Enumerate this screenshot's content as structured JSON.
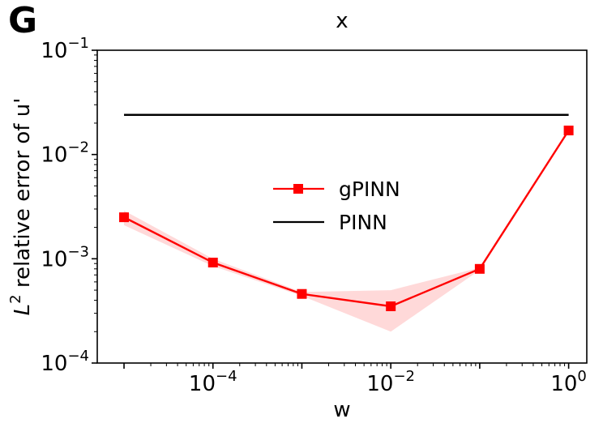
{
  "panel_label": "G",
  "chart_data": {
    "type": "line",
    "title": "x",
    "xlabel": "w",
    "ylabel_base": "L",
    "ylabel_sup": "2",
    "ylabel_rest": " relative error of u'",
    "xscale": "log",
    "yscale": "log",
    "xlim": [
      5e-06,
      1.6
    ],
    "ylim": [
      0.0001,
      0.1
    ],
    "grid": false,
    "legend_position": "center",
    "x_ticks": [
      {
        "value": 0.0001,
        "base": "10",
        "exp": "−4"
      },
      {
        "value": 0.01,
        "base": "10",
        "exp": "−2"
      },
      {
        "value": 1,
        "base": "10",
        "exp": "0"
      }
    ],
    "y_ticks": [
      {
        "value": 0.0001,
        "base": "10",
        "exp": "−4"
      },
      {
        "value": 0.001,
        "base": "10",
        "exp": "−3"
      },
      {
        "value": 0.01,
        "base": "10",
        "exp": "−2"
      },
      {
        "value": 0.1,
        "base": "10",
        "exp": "−1"
      }
    ],
    "series": [
      {
        "name": "gPINN",
        "color": "#ff0000",
        "marker": "square",
        "x": [
          1e-05,
          0.0001,
          0.001,
          0.01,
          0.1,
          1
        ],
        "y": [
          0.0025,
          0.00092,
          0.00046,
          0.00035,
          0.0008,
          0.017
        ],
        "y_lower": [
          0.0021,
          0.00085,
          0.00044,
          0.0002,
          0.00078,
          0.0165
        ],
        "y_upper": [
          0.0029,
          0.001,
          0.00048,
          0.0005,
          0.00082,
          0.0175
        ],
        "band_color": "#ffd0d0"
      },
      {
        "name": "PINN",
        "color": "#000000",
        "marker": "none",
        "x": [
          1e-05,
          1
        ],
        "y": [
          0.024,
          0.024
        ]
      }
    ]
  }
}
